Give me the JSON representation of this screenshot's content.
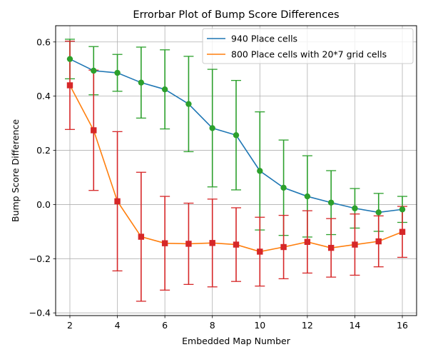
{
  "chart_data": {
    "type": "line",
    "title": "Errorbar Plot of Bump Score Differences",
    "xlabel": "Embedded Map Number",
    "ylabel": "Bump Score Difference",
    "xlim": [
      1.4,
      16.6
    ],
    "ylim": [
      -0.41,
      0.66
    ],
    "xticks": [
      2,
      4,
      6,
      8,
      10,
      12,
      14,
      16
    ],
    "xtick_labels": [
      "2",
      "4",
      "6",
      "8",
      "10",
      "12",
      "14",
      "16"
    ],
    "yticks": [
      -0.4,
      -0.2,
      0.0,
      0.2,
      0.4,
      0.6
    ],
    "ytick_labels": [
      "−0.4",
      "−0.2",
      "0.0",
      "0.2",
      "0.4",
      "0.6"
    ],
    "grid": true,
    "legend_position": "upper right",
    "x": [
      2,
      3,
      4,
      5,
      6,
      7,
      8,
      9,
      10,
      11,
      12,
      13,
      14,
      15,
      16
    ],
    "series": [
      {
        "name": "940 Place cells",
        "line_color": "#1f77b4",
        "marker": "circle",
        "marker_color": "#2ca02c",
        "errorbar_color": "#2ca02c",
        "values": [
          0.537,
          0.494,
          0.486,
          0.45,
          0.425,
          0.371,
          0.282,
          0.256,
          0.124,
          0.062,
          0.03,
          0.007,
          -0.014,
          -0.029,
          -0.018
        ],
        "error": [
          0.073,
          0.089,
          0.068,
          0.131,
          0.146,
          0.176,
          0.217,
          0.202,
          0.218,
          0.176,
          0.15,
          0.118,
          0.073,
          0.07,
          0.048
        ]
      },
      {
        "name": "800 Place cells with 20*7 grid cells",
        "line_color": "#ff7f0e",
        "marker": "square",
        "marker_color": "#d62728",
        "errorbar_color": "#d62728",
        "values": [
          0.44,
          0.274,
          0.012,
          -0.119,
          -0.143,
          -0.145,
          -0.142,
          -0.148,
          -0.174,
          -0.157,
          -0.138,
          -0.16,
          -0.148,
          -0.136,
          -0.101
        ],
        "error": [
          0.163,
          0.222,
          0.257,
          0.238,
          0.173,
          0.15,
          0.162,
          0.136,
          0.127,
          0.117,
          0.115,
          0.108,
          0.113,
          0.094,
          0.094
        ]
      }
    ]
  }
}
